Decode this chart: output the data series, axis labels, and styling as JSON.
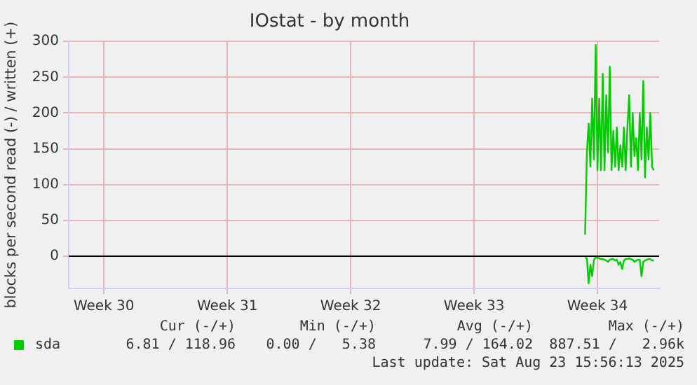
{
  "chart_data": {
    "type": "line",
    "title": "IOstat - by month",
    "ylabel": "blocks per second read (-) / written (+)",
    "categories": [
      null,
      null,
      null,
      null,
      null,
      null,
      null,
      null,
      null,
      null,
      null,
      null,
      null,
      null,
      null,
      null,
      null,
      null,
      null,
      null,
      "Week 30",
      null,
      null,
      null,
      null,
      null,
      null,
      null,
      null,
      null,
      null,
      null,
      null,
      null,
      null,
      null,
      null,
      null,
      null,
      null,
      null,
      null,
      null,
      null,
      null,
      null,
      null,
      null,
      null,
      null,
      null,
      null,
      null,
      null,
      null,
      null,
      null,
      null,
      null,
      null,
      null,
      null,
      null,
      null,
      null,
      null,
      null,
      null,
      null,
      null,
      null,
      null,
      null,
      null,
      null,
      null,
      null,
      null,
      null,
      null,
      null,
      null,
      null,
      null,
      null,
      null,
      null,
      null,
      null,
      null,
      "Week 31",
      null,
      null,
      null,
      null,
      null,
      null,
      null,
      null,
      null,
      null,
      null,
      null,
      null,
      null,
      null,
      null,
      null,
      null,
      null,
      null,
      null,
      null,
      null,
      null,
      null,
      null,
      null,
      null,
      null,
      null,
      null,
      null,
      null,
      null,
      null,
      null,
      null,
      null,
      null,
      null,
      null,
      null,
      null,
      null,
      null,
      null,
      null,
      null,
      null,
      null,
      null,
      null,
      null,
      null,
      null,
      null,
      null,
      null,
      null,
      null,
      null,
      null,
      null,
      null,
      null,
      null,
      null,
      null,
      null,
      "Week 32",
      null,
      null,
      null,
      null,
      null,
      null,
      null,
      null,
      null,
      null,
      null,
      null,
      null,
      null,
      null,
      null,
      null,
      null,
      null,
      null,
      null,
      null,
      null,
      null,
      null,
      null,
      null,
      null,
      null,
      null,
      null,
      null,
      null,
      null,
      null,
      null,
      null,
      null,
      null,
      null,
      null,
      null,
      null,
      null,
      null,
      null,
      null,
      null,
      null,
      null,
      null,
      null,
      null,
      null,
      null,
      null,
      null,
      null,
      null,
      null,
      null,
      null,
      null,
      null,
      null,
      null,
      null,
      null,
      null,
      "Week 33",
      null,
      null,
      null,
      null,
      null,
      null,
      null,
      null,
      null,
      null,
      null,
      null,
      null,
      null,
      null,
      null,
      null,
      null,
      null,
      null,
      null,
      null,
      null,
      null,
      null,
      null,
      null,
      null,
      null,
      null,
      null,
      null,
      null,
      null,
      null,
      null,
      null,
      null,
      null,
      null,
      null,
      null,
      null,
      null,
      null,
      null,
      null,
      null,
      null,
      null,
      null,
      null,
      null,
      null,
      null,
      null,
      null,
      null,
      null,
      null,
      null,
      null,
      null,
      null,
      null,
      null,
      null,
      null,
      null,
      "Week 34",
      null,
      null,
      null,
      null,
      null,
      null,
      null,
      null,
      null,
      null,
      null,
      null,
      null,
      null,
      null,
      null,
      null,
      null,
      null,
      null,
      null,
      null,
      null,
      null,
      null,
      null,
      null,
      null,
      null,
      null,
      null,
      null,
      null,
      null,
      null
    ],
    "ylim": [
      -45,
      300
    ],
    "yticks": [
      0,
      50,
      100,
      150,
      200,
      250,
      300
    ],
    "grid": true,
    "legend": "bottom",
    "ref_lines": [
      {
        "axis": "y",
        "value": 0,
        "color": "#000000"
      }
    ],
    "series": [
      {
        "name": "sda",
        "color": "#00cc00",
        "values": [
          null,
          null,
          null,
          null,
          null,
          null,
          null,
          null,
          null,
          null,
          null,
          null,
          null,
          null,
          null,
          null,
          null,
          null,
          null,
          null,
          null,
          null,
          null,
          null,
          null,
          null,
          null,
          null,
          null,
          null,
          null,
          null,
          null,
          null,
          null,
          null,
          null,
          null,
          null,
          null,
          null,
          null,
          null,
          null,
          null,
          null,
          null,
          null,
          null,
          null,
          null,
          null,
          null,
          null,
          null,
          null,
          null,
          null,
          null,
          null,
          null,
          null,
          null,
          null,
          null,
          null,
          null,
          null,
          null,
          null,
          null,
          null,
          null,
          null,
          null,
          null,
          null,
          null,
          null,
          null,
          null,
          null,
          null,
          null,
          null,
          null,
          null,
          null,
          null,
          null,
          null,
          null,
          null,
          null,
          null,
          null,
          null,
          null,
          null,
          null,
          null,
          null,
          null,
          null,
          null,
          null,
          null,
          null,
          null,
          null,
          null,
          null,
          null,
          null,
          null,
          null,
          null,
          null,
          null,
          null,
          null,
          null,
          null,
          null,
          null,
          null,
          null,
          null,
          null,
          null,
          null,
          null,
          null,
          null,
          null,
          null,
          null,
          null,
          null,
          null,
          null,
          null,
          null,
          null,
          null,
          null,
          null,
          null,
          null,
          null,
          null,
          null,
          null,
          null,
          null,
          null,
          null,
          null,
          null,
          null,
          null,
          null,
          null,
          null,
          null,
          null,
          null,
          null,
          null,
          null,
          null,
          null,
          null,
          null,
          null,
          null,
          null,
          null,
          null,
          null,
          null,
          null,
          null,
          null,
          null,
          null,
          null,
          null,
          null,
          null,
          null,
          null,
          null,
          null,
          null,
          null,
          null,
          null,
          null,
          null,
          null,
          null,
          null,
          null,
          null,
          null,
          null,
          null,
          null,
          null,
          null,
          null,
          null,
          null,
          null,
          null,
          null,
          null,
          null,
          null,
          null,
          null,
          null,
          null,
          null,
          null,
          null,
          null,
          null,
          null,
          null,
          null,
          null,
          null,
          null,
          null,
          null,
          null,
          null,
          null,
          null,
          null,
          null,
          null,
          null,
          null,
          null,
          null,
          null,
          null,
          null,
          null,
          null,
          null,
          null,
          null,
          null,
          null,
          null,
          null,
          null,
          null,
          null,
          null,
          null,
          null,
          null,
          null,
          null,
          null,
          null,
          null,
          null,
          null,
          null,
          null,
          null,
          null,
          null,
          null,
          null,
          null,
          null,
          null,
          null,
          null,
          null,
          null,
          null,
          null,
          null,
          null,
          null,
          30,
          145,
          185,
          125,
          220,
          135,
          295,
          120,
          220,
          120,
          255,
          120,
          225,
          145,
          265,
          120,
          175,
          125,
          180,
          120,
          155,
          125,
          180,
          120,
          180,
          225,
          125,
          200,
          140,
          165,
          120,
          200,
          135,
          245,
          110,
          180,
          135,
          200,
          125,
          120,
          null,
          null,
          null
        ]
      },
      {
        "color": "#00cc00",
        "values": [
          null,
          null,
          null,
          null,
          null,
          null,
          null,
          null,
          null,
          null,
          null,
          null,
          null,
          null,
          null,
          null,
          null,
          null,
          null,
          null,
          null,
          null,
          null,
          null,
          null,
          null,
          null,
          null,
          null,
          null,
          null,
          null,
          null,
          null,
          null,
          null,
          null,
          null,
          null,
          null,
          null,
          null,
          null,
          null,
          null,
          null,
          null,
          null,
          null,
          null,
          null,
          null,
          null,
          null,
          null,
          null,
          null,
          null,
          null,
          null,
          null,
          null,
          null,
          null,
          null,
          null,
          null,
          null,
          null,
          null,
          null,
          null,
          null,
          null,
          null,
          null,
          null,
          null,
          null,
          null,
          null,
          null,
          null,
          null,
          null,
          null,
          null,
          null,
          null,
          null,
          null,
          null,
          null,
          null,
          null,
          null,
          null,
          null,
          null,
          null,
          null,
          null,
          null,
          null,
          null,
          null,
          null,
          null,
          null,
          null,
          null,
          null,
          null,
          null,
          null,
          null,
          null,
          null,
          null,
          null,
          null,
          null,
          null,
          null,
          null,
          null,
          null,
          null,
          null,
          null,
          null,
          null,
          null,
          null,
          null,
          null,
          null,
          null,
          null,
          null,
          null,
          null,
          null,
          null,
          null,
          null,
          null,
          null,
          null,
          null,
          null,
          null,
          null,
          null,
          null,
          null,
          null,
          null,
          null,
          null,
          null,
          null,
          null,
          null,
          null,
          null,
          null,
          null,
          null,
          null,
          null,
          null,
          null,
          null,
          null,
          null,
          null,
          null,
          null,
          null,
          null,
          null,
          null,
          null,
          null,
          null,
          null,
          null,
          null,
          null,
          null,
          null,
          null,
          null,
          null,
          null,
          null,
          null,
          null,
          null,
          null,
          null,
          null,
          null,
          null,
          null,
          null,
          null,
          null,
          null,
          null,
          null,
          null,
          null,
          null,
          null,
          null,
          null,
          null,
          null,
          null,
          null,
          null,
          null,
          null,
          null,
          null,
          null,
          null,
          null,
          null,
          null,
          null,
          null,
          null,
          null,
          null,
          null,
          null,
          null,
          null,
          null,
          null,
          null,
          null,
          null,
          null,
          null,
          null,
          null,
          null,
          null,
          null,
          null,
          null,
          null,
          null,
          null,
          null,
          null,
          null,
          null,
          null,
          null,
          null,
          null,
          null,
          null,
          null,
          null,
          null,
          null,
          null,
          null,
          null,
          null,
          null,
          null,
          null,
          null,
          null,
          null,
          null,
          null,
          null,
          null,
          null,
          null,
          null,
          null,
          null,
          null,
          null,
          -2,
          -3,
          -38,
          -12,
          -28,
          -5,
          -2,
          -2,
          -3,
          -4,
          -4,
          -5,
          -6,
          -8,
          -5,
          -4,
          -4,
          -6,
          -5,
          -12,
          -8,
          -18,
          -6,
          -4,
          -4,
          -3,
          -4,
          -5,
          -8,
          -6,
          -5,
          -5,
          -28,
          -8,
          -6,
          -5,
          -4,
          -4,
          -6,
          -6,
          null,
          null,
          null
        ]
      }
    ],
    "annotations": [
      "Cur (-/+)",
      "Min (-/+)",
      "Avg (-/+)",
      "Max (-/+)",
      "6.81 / 118.96",
      "0.00 /   5.38",
      "7.99 / 164.02",
      "887.51 /   2.96k",
      "Last update: Sat Aug 23 15:56:13 2025"
    ]
  }
}
